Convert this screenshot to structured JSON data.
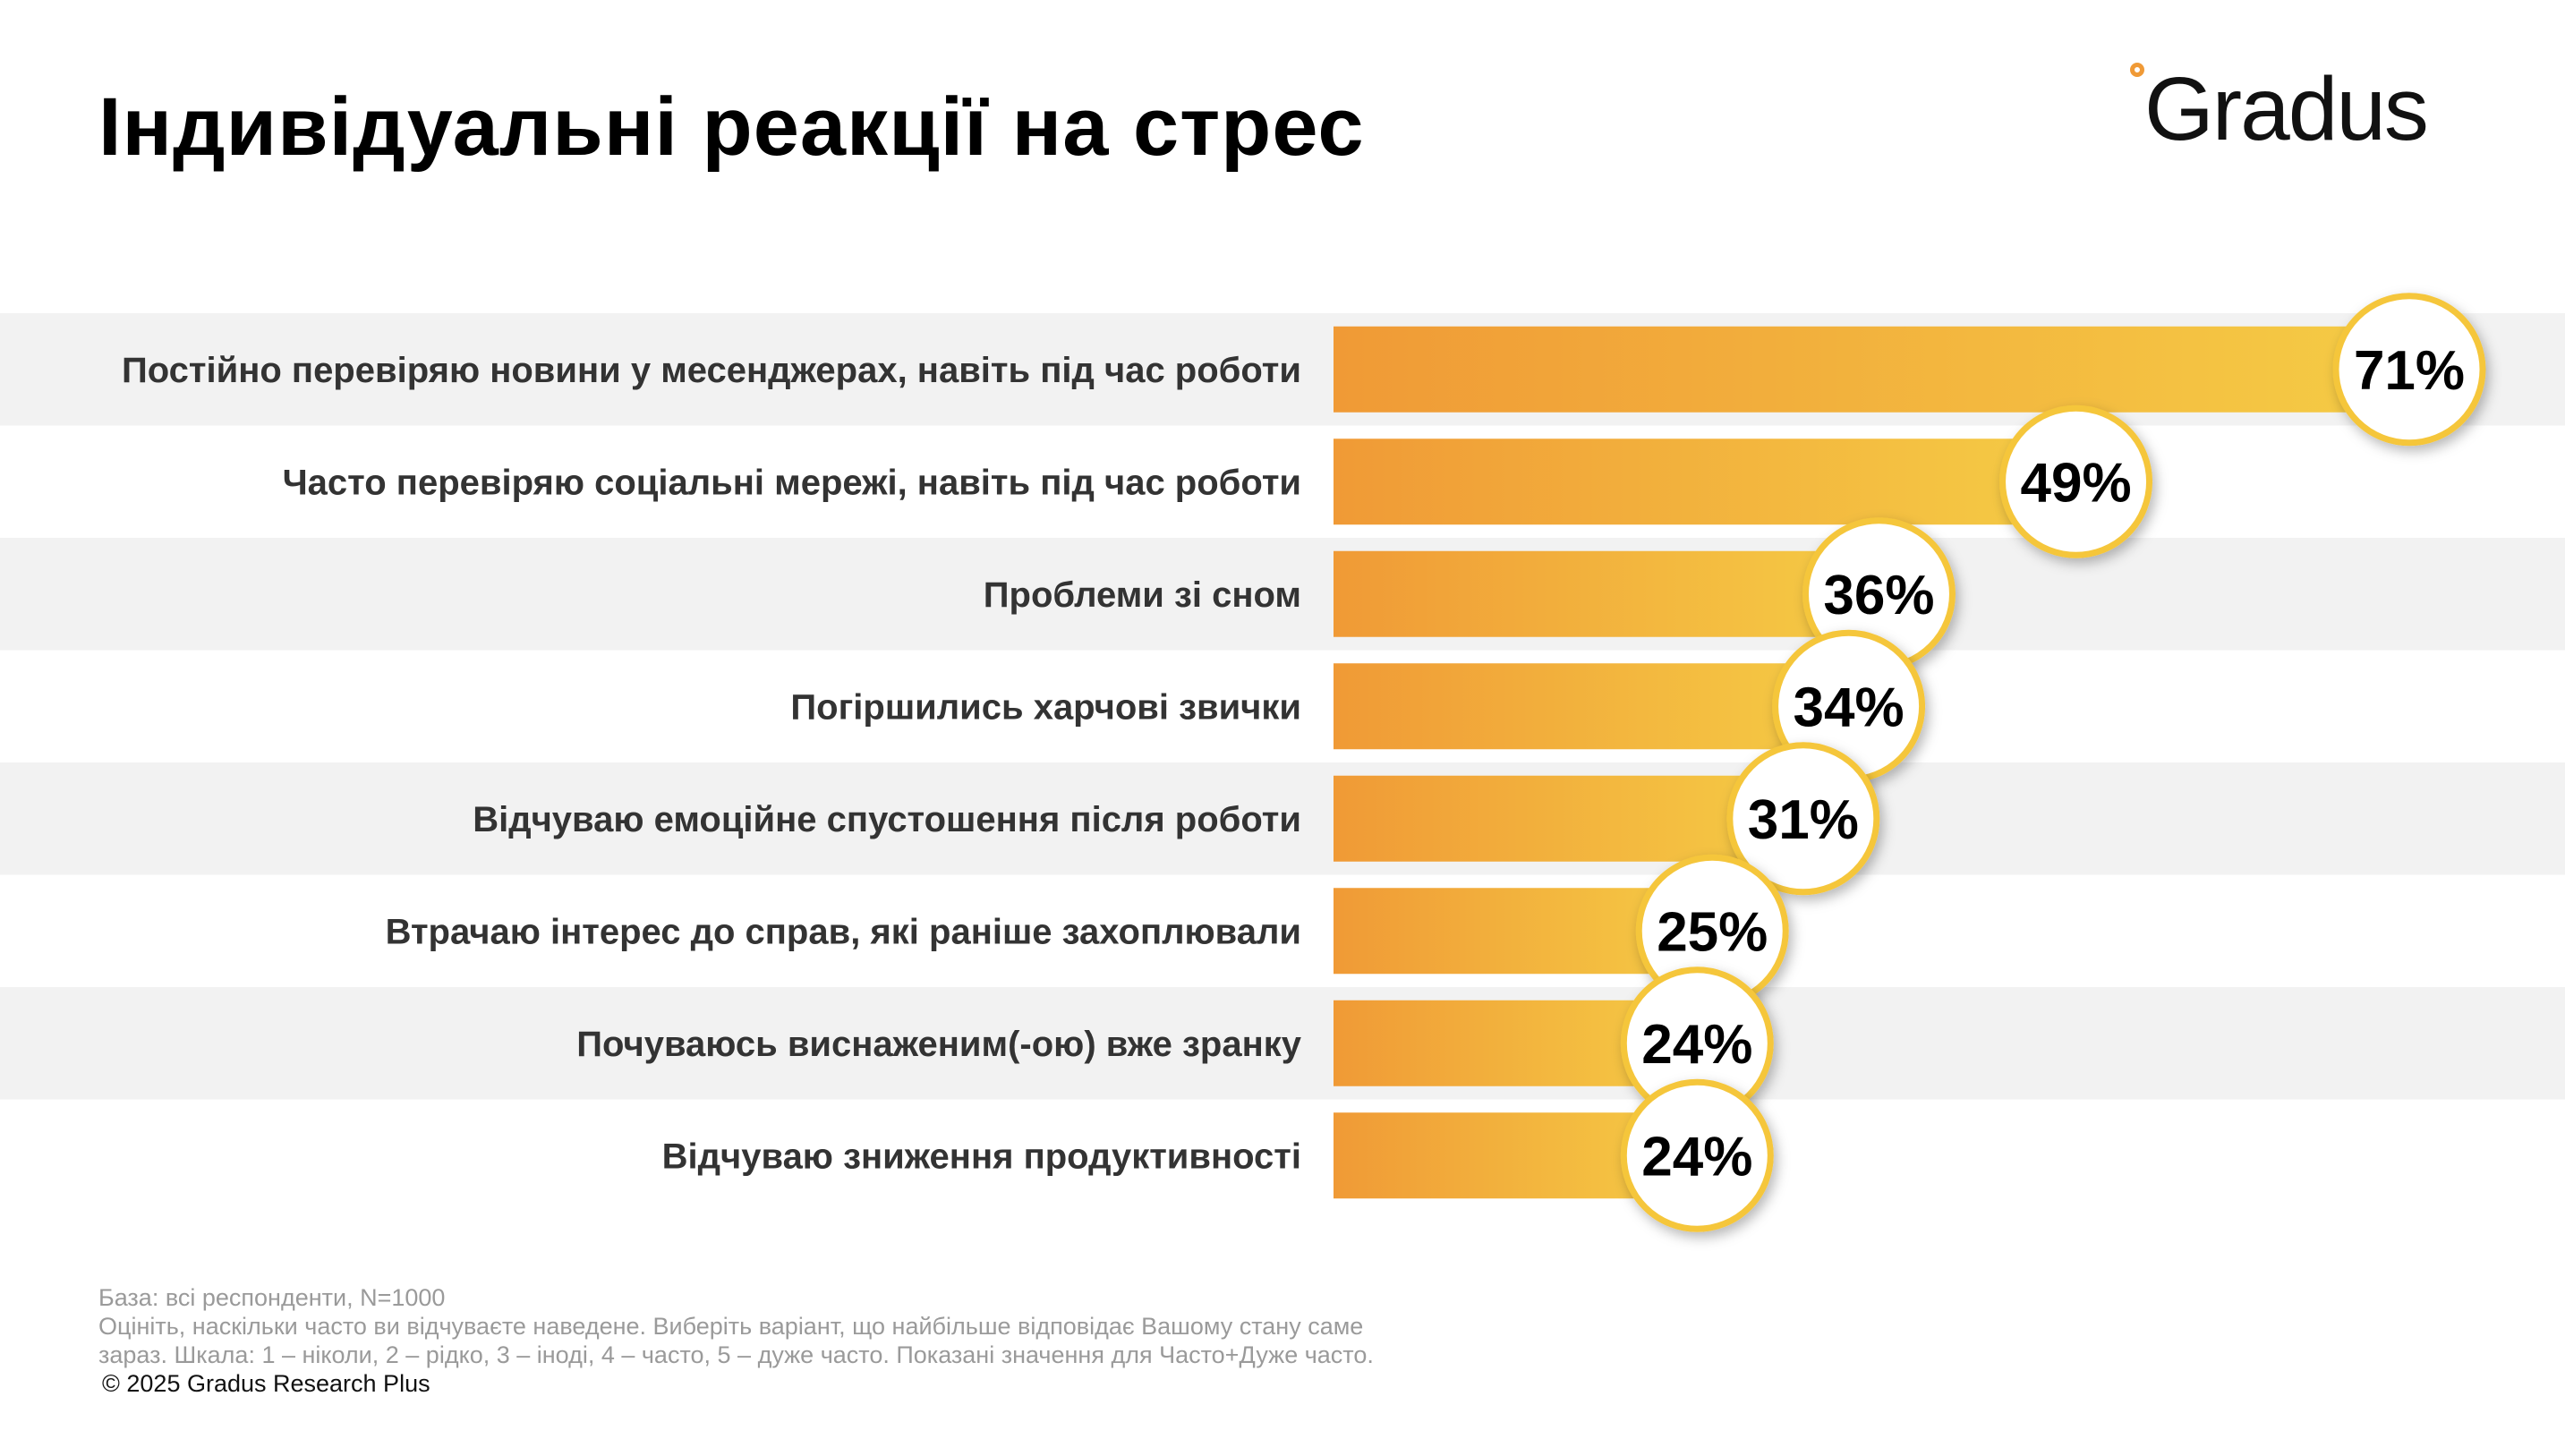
{
  "title": "Індивідуальні реакції на стрес",
  "logo": {
    "text": "Gradus",
    "accent_color": "#f09a36"
  },
  "chart_data": {
    "type": "bar",
    "orientation": "horizontal",
    "categories": [
      "Постійно перевіряю новини у месенджерах, навіть під час роботи",
      "Часто перевіряю соціальні мережі, навіть під час роботи",
      "Проблеми зі сном",
      "Погіршились харчові звички",
      "Відчуваю емоційне спустошення після роботи",
      "Втрачаю інтерес до справ, які раніше захоплювали",
      "Почуваюсь виснаженим(-ою) вже зранку",
      "Відчуваю зниження продуктивності"
    ],
    "values": [
      71,
      49,
      36,
      34,
      31,
      25,
      24,
      24
    ],
    "data_labels": [
      "71%",
      "49%",
      "36%",
      "34%",
      "31%",
      "25%",
      "24%",
      "24%"
    ],
    "unit": "%",
    "xlim": [
      0,
      71
    ],
    "grid": false,
    "legend": "none",
    "colors": {
      "bar_start": "#f09a36",
      "bar_end": "#f5cc45",
      "circle_border": "#f5c63a",
      "row_stripe": "#f2f2f2",
      "label_text": "#333333"
    }
  },
  "footer": {
    "base": "База: всі респонденти, N=1000",
    "question_line1": "Оцініть, наскільки часто ви відчуваєте наведене. Виберіть варіант, що найбільше відповідає Вашому стану саме",
    "question_line2": "зараз. Шкала: 1 – ніколи, 2 – рідко, 3 – іноді, 4 – часто, 5 – дуже часто. Показані значення для Часто+Дуже часто.",
    "copyright": "© 2025 Gradus Research Plus"
  }
}
